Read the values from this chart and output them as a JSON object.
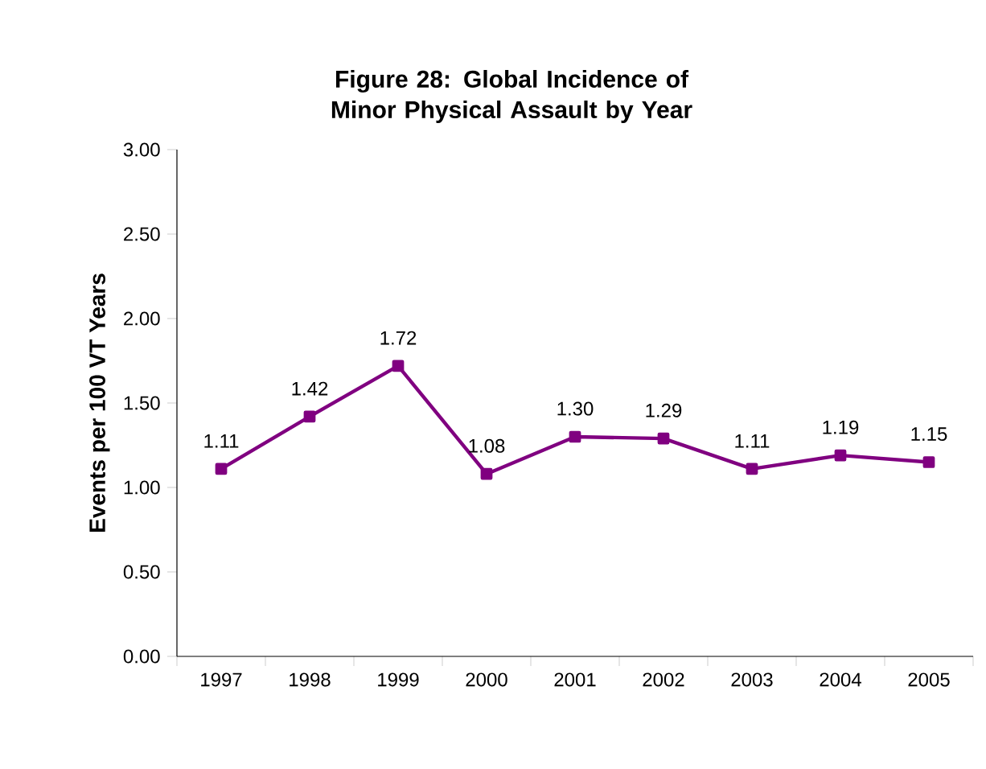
{
  "chart_data": {
    "type": "line",
    "title": "Figure 28:  Global Incidence of Minor Physical Assault by Year",
    "ylabel": "Events per 100 VT Years",
    "categories": [
      "1997",
      "1998",
      "1999",
      "2000",
      "2001",
      "2002",
      "2003",
      "2004",
      "2005"
    ],
    "values": [
      1.11,
      1.42,
      1.72,
      1.08,
      1.3,
      1.29,
      1.11,
      1.19,
      1.15
    ],
    "value_labels": [
      "1.11",
      "1.42",
      "1.72",
      "1.08",
      "1.30",
      "1.29",
      "1.11",
      "1.19",
      "1.15"
    ],
    "color": "#800080",
    "marker": "square",
    "line_style": "solid",
    "grid": false,
    "ylim": [
      0,
      3
    ],
    "yticks": [
      {
        "value": 0,
        "label": "0.00"
      },
      {
        "value": 0.5,
        "label": "0.50"
      },
      {
        "value": 1,
        "label": "1.00"
      },
      {
        "value": 1.5,
        "label": "1.50"
      },
      {
        "value": 2,
        "label": "2.00"
      },
      {
        "value": 2.5,
        "label": "2.50"
      },
      {
        "value": 3,
        "label": "3.00"
      }
    ]
  }
}
